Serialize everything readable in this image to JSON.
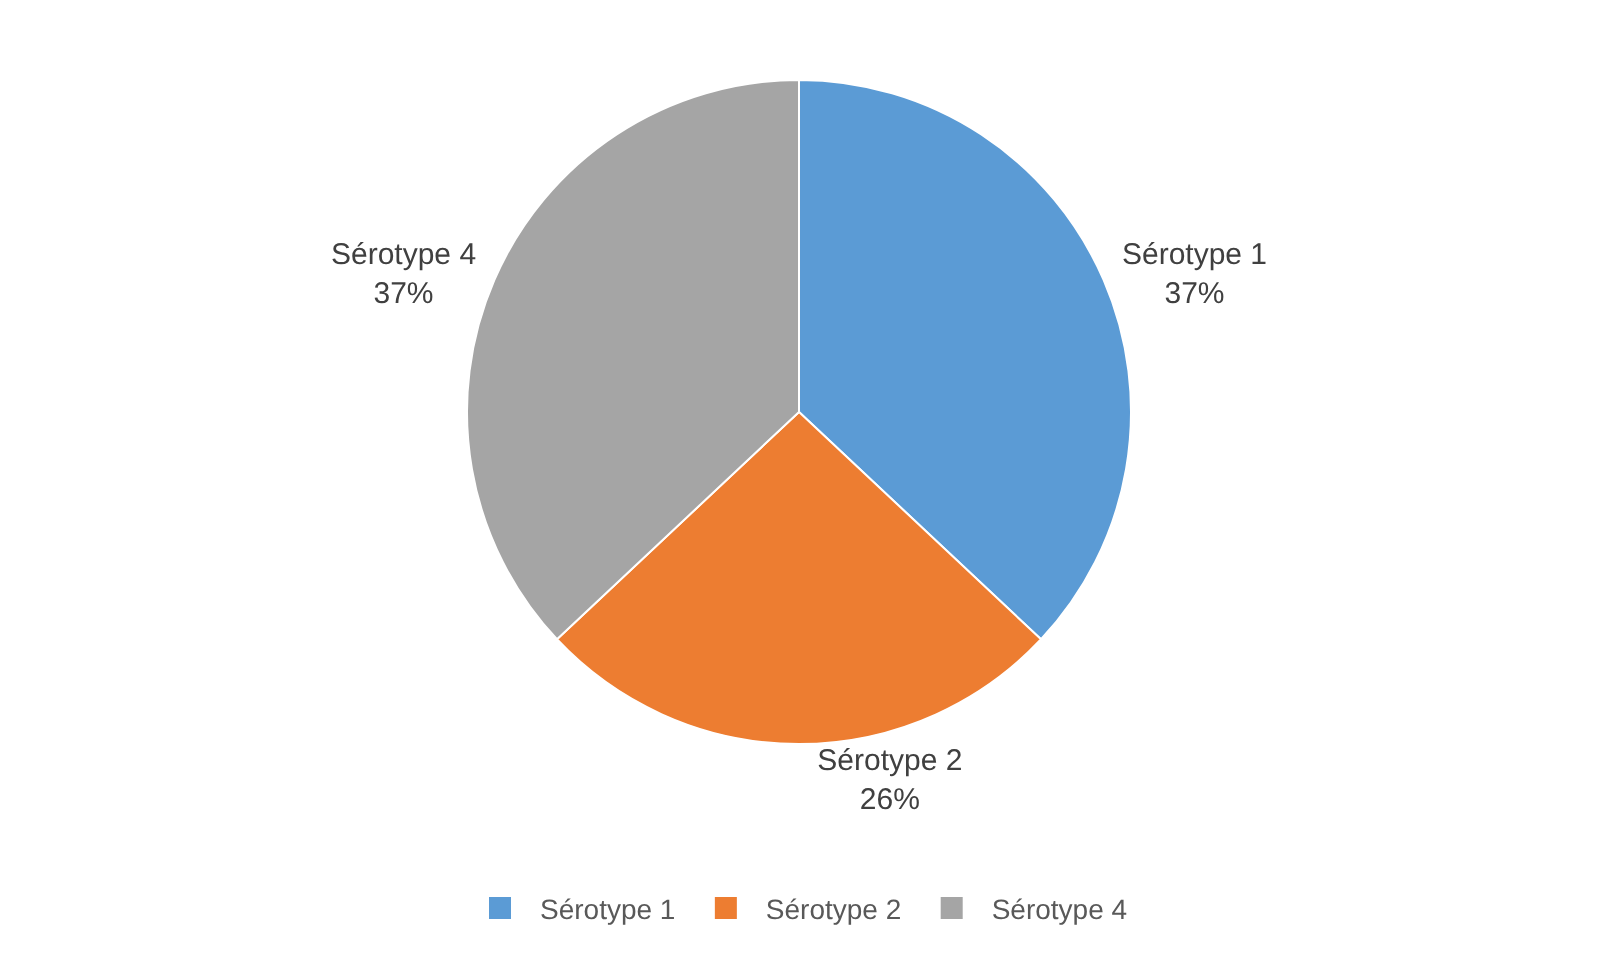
{
  "chart_data": {
    "type": "pie",
    "categories": [
      "Sérotype 1",
      "Sérotype 2",
      "Sérotype 4"
    ],
    "values": [
      37,
      26,
      37
    ],
    "value_labels": [
      "37%",
      "26%",
      "37%"
    ],
    "colors": [
      "#5b9bd5",
      "#ed7d31",
      "#a5a5a5"
    ],
    "legend": "bottom"
  }
}
